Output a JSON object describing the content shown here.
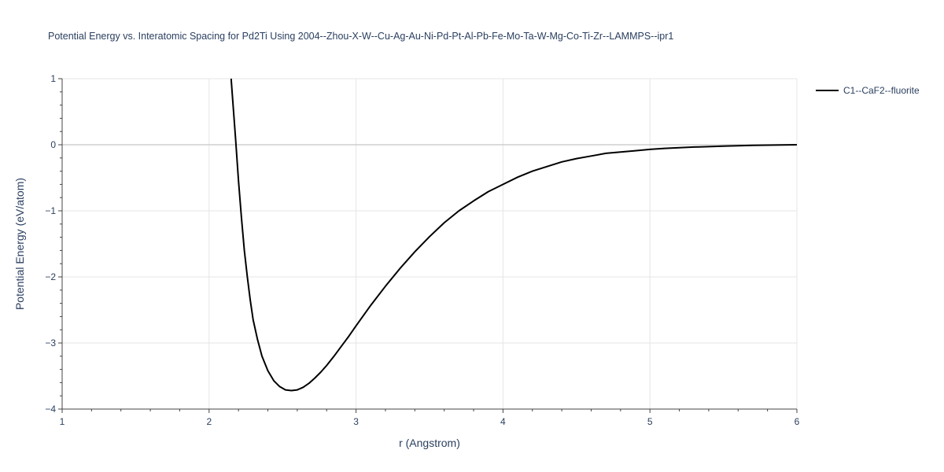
{
  "chart_data": {
    "type": "line",
    "title": "Potential Energy vs. Interatomic Spacing for Pd2Ti Using 2004--Zhou-X-W--Cu-Ag-Au-Ni-Pd-Pt-Al-Pb-Fe-Mo-Ta-W-Mg-Co-Ti-Zr--LAMMPS--ipr1",
    "xlabel": "r (Angstrom)",
    "ylabel": "Potential Energy (eV/atom)",
    "xlim": [
      1,
      6
    ],
    "ylim": [
      -4,
      1
    ],
    "x_ticks": [
      1,
      2,
      3,
      4,
      5,
      6
    ],
    "y_ticks": [
      1,
      0,
      -1,
      -2,
      -3,
      -4
    ],
    "x_tick_labels": [
      "1",
      "2",
      "3",
      "4",
      "5",
      "6"
    ],
    "y_tick_labels": [
      "1",
      "0",
      "−1",
      "−2",
      "−3",
      "−4"
    ],
    "grid": true,
    "legend_position": "top-right",
    "series": [
      {
        "name": "C1--CaF2--fluorite",
        "color": "#000000",
        "x": [
          2.15,
          2.18,
          2.2,
          2.22,
          2.24,
          2.26,
          2.28,
          2.3,
          2.33,
          2.36,
          2.4,
          2.44,
          2.48,
          2.52,
          2.56,
          2.6,
          2.64,
          2.68,
          2.72,
          2.76,
          2.8,
          2.85,
          2.9,
          2.95,
          3.0,
          3.1,
          3.2,
          3.3,
          3.4,
          3.5,
          3.6,
          3.7,
          3.8,
          3.9,
          4.0,
          4.1,
          4.2,
          4.3,
          4.4,
          4.5,
          4.6,
          4.7,
          4.8,
          4.9,
          5.0,
          5.1,
          5.2,
          5.3,
          5.4,
          5.5,
          5.6,
          5.7,
          5.8,
          5.9,
          6.0
        ],
        "y": [
          1.0,
          0.1,
          -0.55,
          -1.1,
          -1.6,
          -2.0,
          -2.35,
          -2.65,
          -2.95,
          -3.2,
          -3.42,
          -3.57,
          -3.66,
          -3.71,
          -3.72,
          -3.71,
          -3.67,
          -3.61,
          -3.53,
          -3.44,
          -3.34,
          -3.2,
          -3.05,
          -2.9,
          -2.74,
          -2.43,
          -2.14,
          -1.87,
          -1.62,
          -1.39,
          -1.18,
          -1.0,
          -0.85,
          -0.71,
          -0.6,
          -0.49,
          -0.4,
          -0.33,
          -0.26,
          -0.21,
          -0.17,
          -0.13,
          -0.11,
          -0.09,
          -0.07,
          -0.055,
          -0.045,
          -0.035,
          -0.028,
          -0.02,
          -0.015,
          -0.01,
          -0.006,
          -0.003,
          0.0
        ]
      }
    ]
  }
}
